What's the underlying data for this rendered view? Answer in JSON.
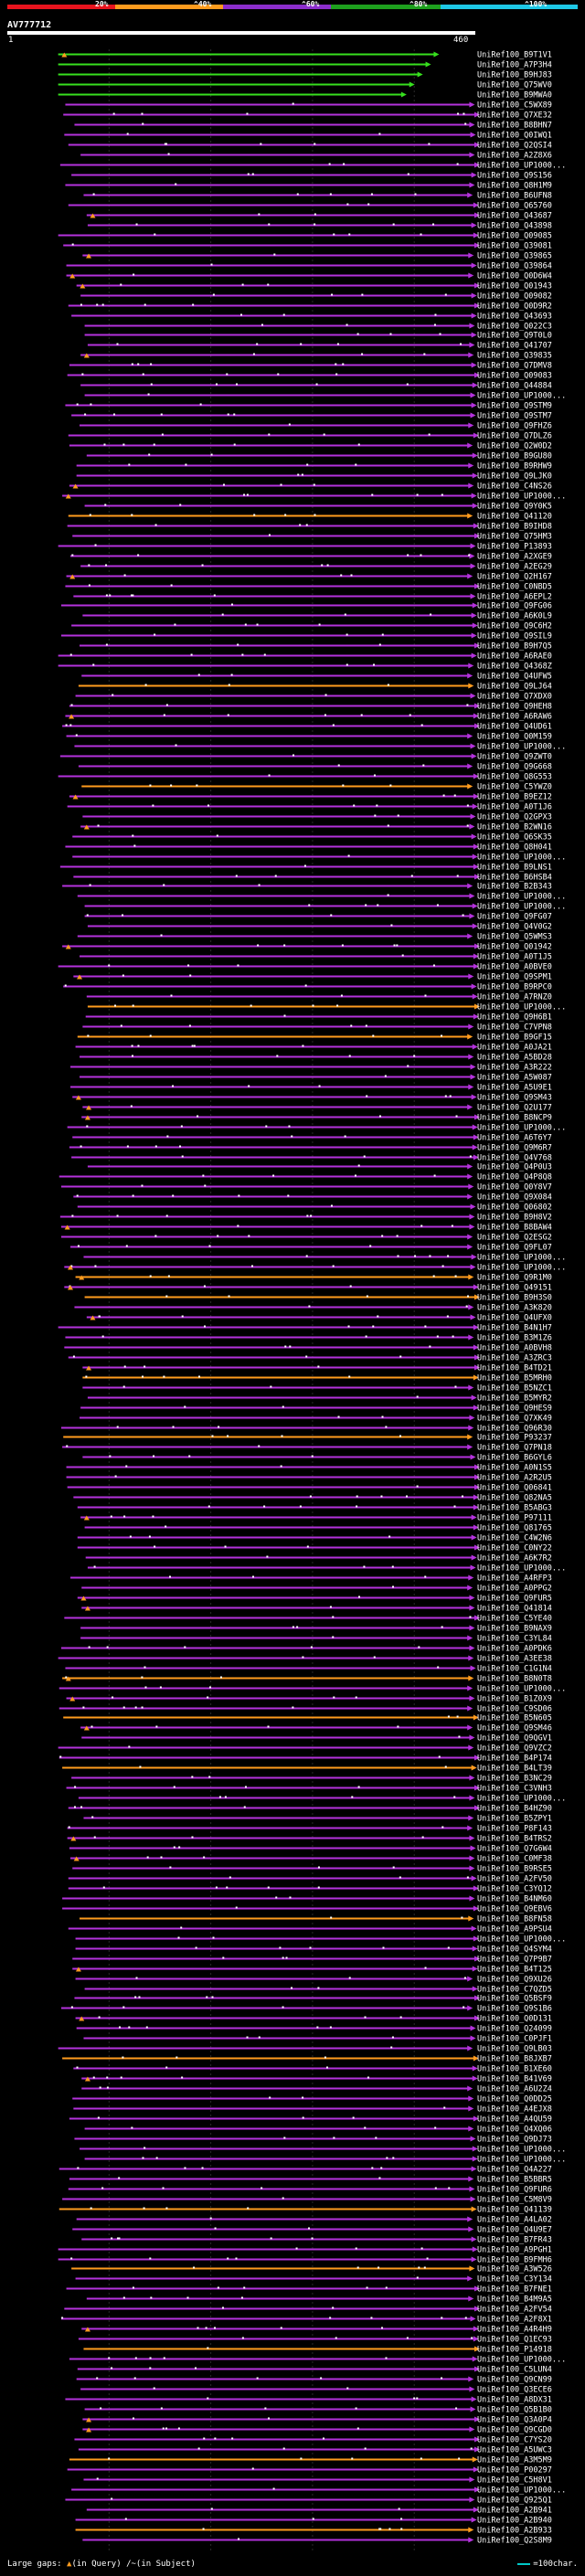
{
  "scale_bar": {
    "labels": [
      "20%",
      "^40%",
      "^60%",
      "^80%",
      "^100%"
    ],
    "colors": [
      "#e8141e",
      "#ff9c1e",
      "#8c2ecc",
      "#1ea01e",
      "#1ec8e6"
    ]
  },
  "query": {
    "title": "AV777712",
    "start_label": "1",
    "end_label": "460"
  },
  "chart_data": {
    "type": "alignment-map",
    "query_length": 460,
    "hits": [
      "UniRef100_B9T1V1",
      "UniRef100_A7P3H4",
      "UniRef100_B9HJ83",
      "UniRef100_Q75WV0",
      "UniRef100_B9MWA0",
      "UniRef100_C5WX89",
      "UniRef100_Q7XE32",
      "UniRef100_B8BHN7",
      "UniRef100_Q0IWQ1",
      "UniRef100_Q2QSI4",
      "UniRef100_A2Z8X6",
      "UniRef100_UP1000...",
      "UniRef100_Q9S156",
      "UniRef100_Q8H1M9",
      "UniRef100_B6UFN8",
      "UniRef100_Q65760",
      "UniRef100_Q43687",
      "UniRef100_Q43898",
      "UniRef100_Q09085",
      "UniRef100_Q39081",
      "UniRef100_Q39865",
      "UniRef100_Q39864",
      "UniRef100_Q0D6W4",
      "UniRef100_Q01943",
      "UniRef100_Q09082",
      "UniRef100_Q0D9R2",
      "UniRef100_Q43693",
      "UniRef100_Q022C3",
      "UniRef100_Q9T0L0",
      "UniRef100_Q41707",
      "UniRef100_Q39835",
      "UniRef100_Q7DMV8",
      "UniRef100_Q09083",
      "UniRef100_Q44884",
      "UniRef100_UP1000...",
      "UniRef100_Q9STM9",
      "UniRef100_Q9STM7",
      "UniRef100_Q9FHZ6",
      "UniRef100_Q7DLZ6",
      "UniRef100_Q2W0D2",
      "UniRef100_B9GU80",
      "UniRef100_B9RHW9",
      "UniRef100_Q9LJK0",
      "UniRef100_C4NS26",
      "UniRef100_UP1000...",
      "UniRef100_Q9Y0K5",
      "UniRef100_Q41120",
      "UniRef100_B9IHD8",
      "UniRef100_Q75HM3",
      "UniRef100_P13893",
      "UniRef100_A2XGE9",
      "UniRef100_A2EG29",
      "UniRef100_Q2H167",
      "UniRef100_C0NBD5",
      "UniRef100_A6EPL2",
      "UniRef100_Q9FG06",
      "UniRef100_A6K0L9",
      "UniRef100_Q9C6H2",
      "UniRef100_Q9SIL9",
      "UniRef100_B9H7Q5",
      "UniRef100_A6RAE0",
      "UniRef100_Q4368Z",
      "UniRef100_Q4UFW5",
      "UniRef100_Q9LJ64",
      "UniRef100_Q7XDX0",
      "UniRef100_Q9HEH8",
      "UniRef100_A6RAW6",
      "UniRef100_Q4UD61",
      "UniRef100_Q0M159",
      "UniRef100_UP1000...",
      "UniRef100_Q9ZWT0",
      "UniRef100_Q9G668",
      "UniRef100_Q8G553",
      "UniRef100_C5YWZ0",
      "UniRef100_B9EZ12",
      "UniRef100_A0T1J6",
      "UniRef100_Q2GPX3",
      "UniRef100_B2WN16",
      "UniRef100_Q6SK35",
      "UniRef100_Q8H041",
      "UniRef100_UP1000...",
      "UniRef100_B9LNS1",
      "UniRef100_B6HSB4",
      "UniRef100_B2B343",
      "UniRef100_UP1000...",
      "UniRef100_UP1000...",
      "UniRef100_Q9FG07",
      "UniRef100_Q4V0G2",
      "UniRef100_Q5WMS3",
      "UniRef100_Q01942",
      "UniRef100_A0T1J5",
      "UniRef100_A0BVE0",
      "UniRef100_Q9SPM1",
      "UniRef100_B9RPC0",
      "UniRef100_A7RNZ0",
      "UniRef100_UP1000...",
      "UniRef100_Q9H6B1",
      "UniRef100_C7VPN8",
      "UniRef100_B9GF15",
      "UniRef100_A0JA21",
      "UniRef100_A5BD28",
      "UniRef100_A3R222",
      "UniRef100_A5W087",
      "UniRef100_A5U9E1",
      "UniRef100_Q9SM43",
      "UniRef100_Q2U177",
      "UniRef100_B8NCP9",
      "UniRef100_UP1000...",
      "UniRef100_A6T6Y7",
      "UniRef100_Q9M6R7",
      "UniRef100_Q4V768",
      "UniRef100_Q4P0U3",
      "UniRef100_Q4P8Q8",
      "UniRef100_Q0Y8V7",
      "UniRef100_Q9X084",
      "UniRef100_Q06802",
      "UniRef100_B9H8V2",
      "UniRef100_B8BAW4",
      "UniRef100_Q2ESG2",
      "UniRef100_Q9FL07",
      "UniRef100_UP1000...",
      "UniRef100_UP1000...",
      "UniRef100_Q9R1M0",
      "UniRef100_Q49151",
      "UniRef100_B9H3S0",
      "UniRef100_A3K820",
      "UniRef100_Q4UFX0",
      "UniRef100_B4N1H7",
      "UniRef100_B3M1Z6",
      "UniRef100_A0BVH8",
      "UniRef100_A3ZRC3",
      "UniRef100_B4TD21",
      "UniRef100_B5MRH0",
      "UniRef100_B5NZC1",
      "UniRef100_B5MYR2",
      "UniRef100_Q9HES9",
      "UniRef100_Q7XK49",
      "UniRef100_Q96R30",
      "UniRef100_P93237",
      "UniRef100_Q7PN18",
      "UniRef100_B6GYL6",
      "UniRef100_A0N1S5",
      "UniRef100_A2R2U5",
      "UniRef100_Q06841",
      "UniRef100_Q82NA5",
      "UniRef100_B5ABG3",
      "UniRef100_P97111",
      "UniRef100_Q81765",
      "UniRef100_C4W2N6",
      "UniRef100_C0NY22",
      "UniRef100_A6K7R2",
      "UniRef100_UP1000...",
      "UniRef100_A4RFP3",
      "UniRef100_A0PPG2",
      "UniRef100_Q9FUR5",
      "UniRef100_Q41814",
      "UniRef100_C5YE40",
      "UniRef100_B9NAX9",
      "UniRef100_C3YL84",
      "UniRef100_A0PDK6",
      "UniRef100_A3EE38",
      "UniRef100_C1G1N4",
      "UniRef100_B8N0T8",
      "UniRef100_UP1000...",
      "UniRef100_B1Z0X9",
      "UniRef100_C9SD06",
      "UniRef100_B5N605",
      "UniRef100_Q9SM46",
      "UniRef100_Q9QGV1",
      "UniRef100_Q9VZC2",
      "UniRef100_B4P174",
      "UniRef100_B4LT39",
      "UniRef100_B3NC29",
      "UniRef100_C3VNH3",
      "UniRef100_UP1000...",
      "UniRef100_B4HZ90",
      "UniRef100_B5ZPY1",
      "UniRef100_P8F143",
      "UniRef100_B4TRS2",
      "UniRef100_Q7G6W4",
      "UniRef100_C0MF38",
      "UniRef100_B9RSE5",
      "UniRef100_A2FV50",
      "UniRef100_C3YQ12",
      "UniRef100_B4NM60",
      "UniRef100_Q9EBV6",
      "UniRef100_B8FN58",
      "UniRef100_A9PSU4",
      "UniRef100_UP1000...",
      "UniRef100_Q4SYM4",
      "UniRef100_Q7P9B7",
      "UniRef100_B4T125",
      "UniRef100_Q9XU26",
      "UniRef100_C7QZD5",
      "UniRef100_Q5BSF9",
      "UniRef100_Q9S1B6",
      "UniRef100_Q0D131",
      "UniRef100_Q24099",
      "UniRef100_C0PJF1",
      "UniRef100_Q9LB03",
      "UniRef100_B8JXB7",
      "UniRef100_B1XE60",
      "UniRef100_B41V69",
      "UniRef100_A6U2Z4",
      "UniRef100_Q0DD25",
      "UniRef100_A4EJX8",
      "UniRef100_A4QU59",
      "UniRef100_Q4XQ06",
      "UniRef100_Q9DJ73",
      "UniRef100_UP1000...",
      "UniRef100_UP1000...",
      "UniRef100_Q4A227",
      "UniRef100_B5BBR5",
      "UniRef100_Q9FUR6",
      "UniRef100_C5M8V9",
      "UniRef100_Q41139",
      "UniRef100_A4LA02",
      "UniRef100_Q4U9E7",
      "UniRef100_B7FR43",
      "UniRef100_A9PGH1",
      "UniRef100_B9FMH6",
      "UniRef100_A3W526",
      "UniRef100_C3Y134",
      "UniRef100_B7FNE1",
      "UniRef100_B4M9A5",
      "UniRef100_A2FV54",
      "UniRef100_A2F8X1",
      "UniRef100_A4R4H9",
      "UniRef100_Q1EC93",
      "UniRef100_P14918",
      "UniRef100_UP1000...",
      "UniRef100_C5LUN4",
      "UniRef100_Q9CN99",
      "UniRef100_Q3ECE6",
      "UniRef100_A8DX31",
      "UniRef100_Q5B1B0",
      "UniRef100_Q3A0P4",
      "UniRef100_Q9CGD0",
      "UniRef100_C7YS20",
      "UniRef100_A5UWC3",
      "UniRef100_A3M5M9",
      "UniRef100_P00297",
      "UniRef100_C5H8V1",
      "UniRef100_UP1000...",
      "UniRef100_Q925Q1",
      "UniRef100_A2B941",
      "UniRef100_A2B940",
      "UniRef100_A2B933",
      "UniRef100_Q2S8M9"
    ]
  },
  "footer": {
    "large_gaps_label": "Large gaps:",
    "in_query": "(in Query)",
    "in_subject": "/~(in Subject)",
    "legend_text": "=100char."
  }
}
